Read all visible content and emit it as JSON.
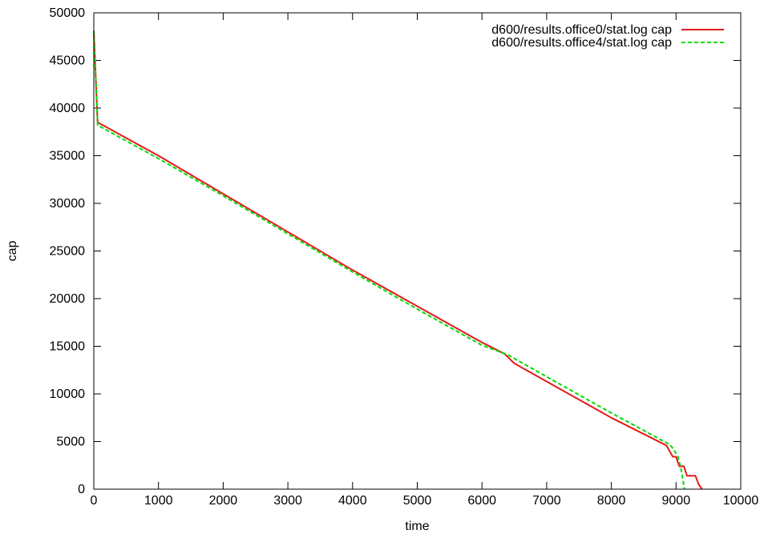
{
  "chart_data": {
    "type": "line",
    "title": "",
    "xlabel": "time",
    "ylabel": "cap",
    "xlim": [
      0,
      10000
    ],
    "ylim": [
      0,
      50000
    ],
    "xticks": [
      0,
      1000,
      2000,
      3000,
      4000,
      5000,
      6000,
      7000,
      8000,
      9000,
      10000
    ],
    "yticks": [
      0,
      5000,
      10000,
      15000,
      20000,
      25000,
      30000,
      35000,
      40000,
      45000,
      50000
    ],
    "grid": false,
    "legend_position": "top-right",
    "series": [
      {
        "name": "d600/results.office0/stat.log cap",
        "color": "#e41a1c",
        "dash": "solid",
        "points": [
          [
            0,
            48100
          ],
          [
            60,
            38500
          ],
          [
            1000,
            35000
          ],
          [
            2000,
            31000
          ],
          [
            3000,
            27000
          ],
          [
            4000,
            23000
          ],
          [
            5000,
            19200
          ],
          [
            6000,
            15400
          ],
          [
            6350,
            14200
          ],
          [
            6500,
            13200
          ],
          [
            7000,
            11300
          ],
          [
            8000,
            7500
          ],
          [
            8850,
            4600
          ],
          [
            8950,
            3400
          ],
          [
            9000,
            3400
          ],
          [
            9050,
            2400
          ],
          [
            9120,
            2400
          ],
          [
            9170,
            1400
          ],
          [
            9300,
            1400
          ],
          [
            9350,
            500
          ],
          [
            9400,
            0
          ]
        ]
      },
      {
        "name": "d600/results.office4/stat.log cap",
        "color": "#00dd00",
        "dash": "dashed",
        "points": [
          [
            0,
            48000
          ],
          [
            60,
            38200
          ],
          [
            1000,
            34700
          ],
          [
            2000,
            30800
          ],
          [
            3000,
            26800
          ],
          [
            4000,
            22800
          ],
          [
            5000,
            18900
          ],
          [
            6000,
            15100
          ],
          [
            6400,
            14100
          ],
          [
            7000,
            11800
          ],
          [
            8000,
            8000
          ],
          [
            8900,
            4700
          ],
          [
            8960,
            4200
          ],
          [
            9030,
            3400
          ],
          [
            9080,
            2000
          ],
          [
            9130,
            0
          ]
        ]
      }
    ]
  }
}
